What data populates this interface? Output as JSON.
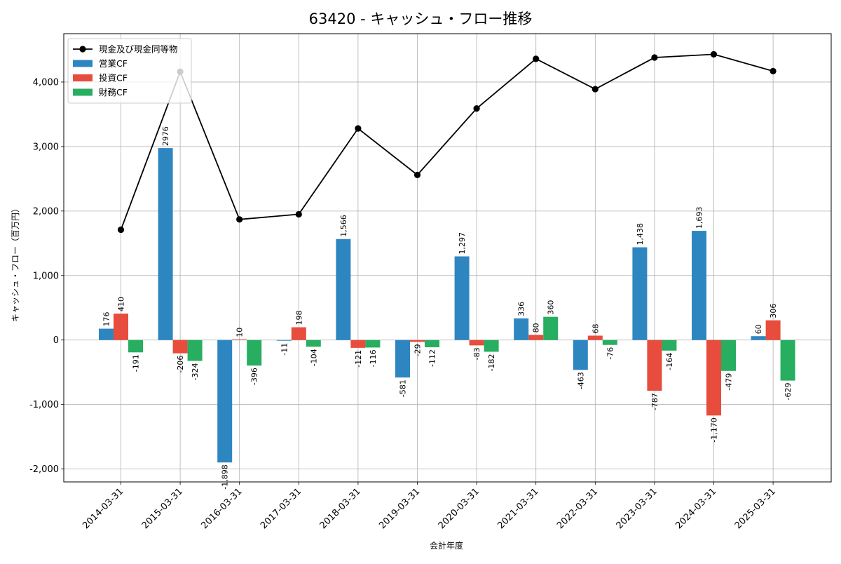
{
  "chart_data": {
    "type": "bar",
    "title": "63420 - キャッシュ・フロー推移",
    "xlabel": "会計年度",
    "ylabel": "キャッシュ・フロー（百万円）",
    "ylim": [
      -2200,
      4750
    ],
    "yticks": [
      -2000,
      -1000,
      0,
      1000,
      2000,
      3000,
      4000
    ],
    "ytick_labels": [
      "-2,000",
      "-1,000",
      "0",
      "1,000",
      "2,000",
      "3,000",
      "4,000"
    ],
    "grid": true,
    "legend_position": "top-left",
    "categories": [
      "2014-03-31",
      "2015-03-31",
      "2016-03-31",
      "2017-03-31",
      "2018-03-31",
      "2019-03-31",
      "2020-03-31",
      "2021-03-31",
      "2022-03-31",
      "2023-03-31",
      "2024-03-31",
      "2025-03-31"
    ],
    "series": [
      {
        "name": "営業CF",
        "kind": "bar",
        "color": "#2e86c1",
        "values": [
          176,
          2976,
          -1898,
          -11,
          1566,
          -581,
          1297,
          336,
          -463,
          1438,
          1693,
          60
        ],
        "labels": [
          "176",
          "2976",
          "-1,898",
          "-11",
          "1,566",
          "-581",
          "1,297",
          "336",
          "-463",
          "1,438",
          "1,693",
          "60"
        ]
      },
      {
        "name": "投資CF",
        "kind": "bar",
        "color": "#e74c3c",
        "values": [
          410,
          -206,
          10,
          198,
          -121,
          -29,
          -83,
          80,
          68,
          -787,
          -1170,
          306
        ],
        "labels": [
          "410",
          "-206",
          "10",
          "198",
          "-121",
          "-29",
          "-83",
          "80",
          "68",
          "-787",
          "-1,170",
          "306"
        ]
      },
      {
        "name": "財務CF",
        "kind": "bar",
        "color": "#27ae60",
        "values": [
          -191,
          -324,
          -396,
          -104,
          -116,
          -112,
          -182,
          360,
          -76,
          -164,
          -479,
          -629
        ],
        "labels": [
          "-191",
          "-324",
          "-396",
          "-104",
          "-116",
          "-112",
          "-182",
          "360",
          "-76",
          "-164",
          "-479",
          "-629"
        ]
      },
      {
        "name": "現金及び現金同等物",
        "kind": "line",
        "color": "#000000",
        "values": [
          1710,
          4160,
          1870,
          1950,
          3280,
          2560,
          3590,
          4360,
          3890,
          4380,
          4430,
          4170
        ]
      }
    ]
  }
}
